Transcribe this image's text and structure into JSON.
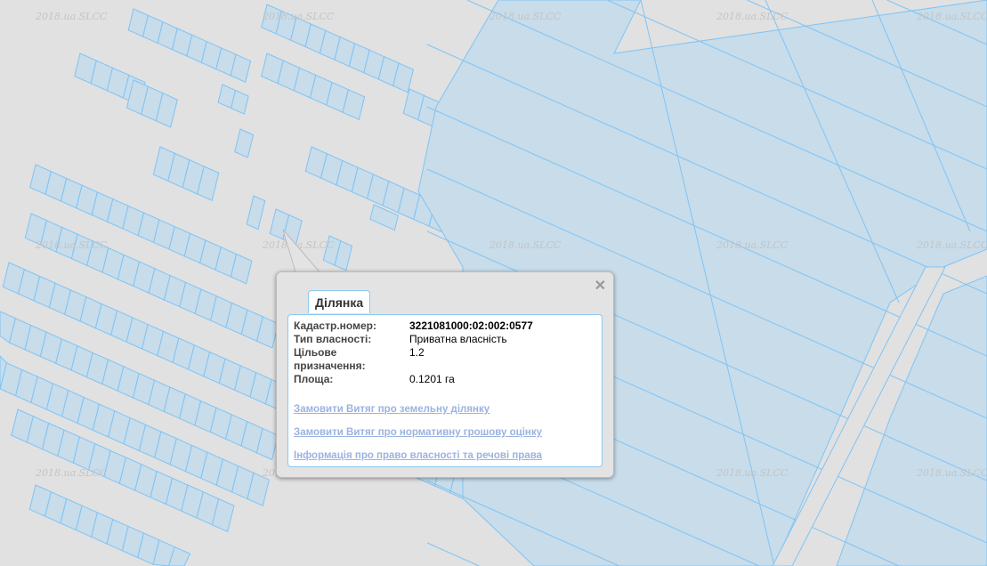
{
  "map": {
    "watermark": "2018.ua.SLCC",
    "parcel_fill": "#c8dcea",
    "parcel_stroke": "#7fc4f5",
    "background": "#e1e1e1"
  },
  "popup": {
    "tab": "Ділянка",
    "close_icon": "close-icon",
    "fields": [
      {
        "label": "Кадастр.номер:",
        "value": "3221081000:02:002:0577"
      },
      {
        "label": "Тип власності:",
        "value": "Приватна власність"
      },
      {
        "label": "Цільове призначення:",
        "value": "1.2"
      },
      {
        "label": "Площа:",
        "value": "0.1201 га"
      }
    ],
    "links": [
      "Замовити Витяг про земельну ділянку",
      "Замовити Витяг про нормативну грошову оцінку",
      "Інформація про право власності та речові права"
    ]
  }
}
